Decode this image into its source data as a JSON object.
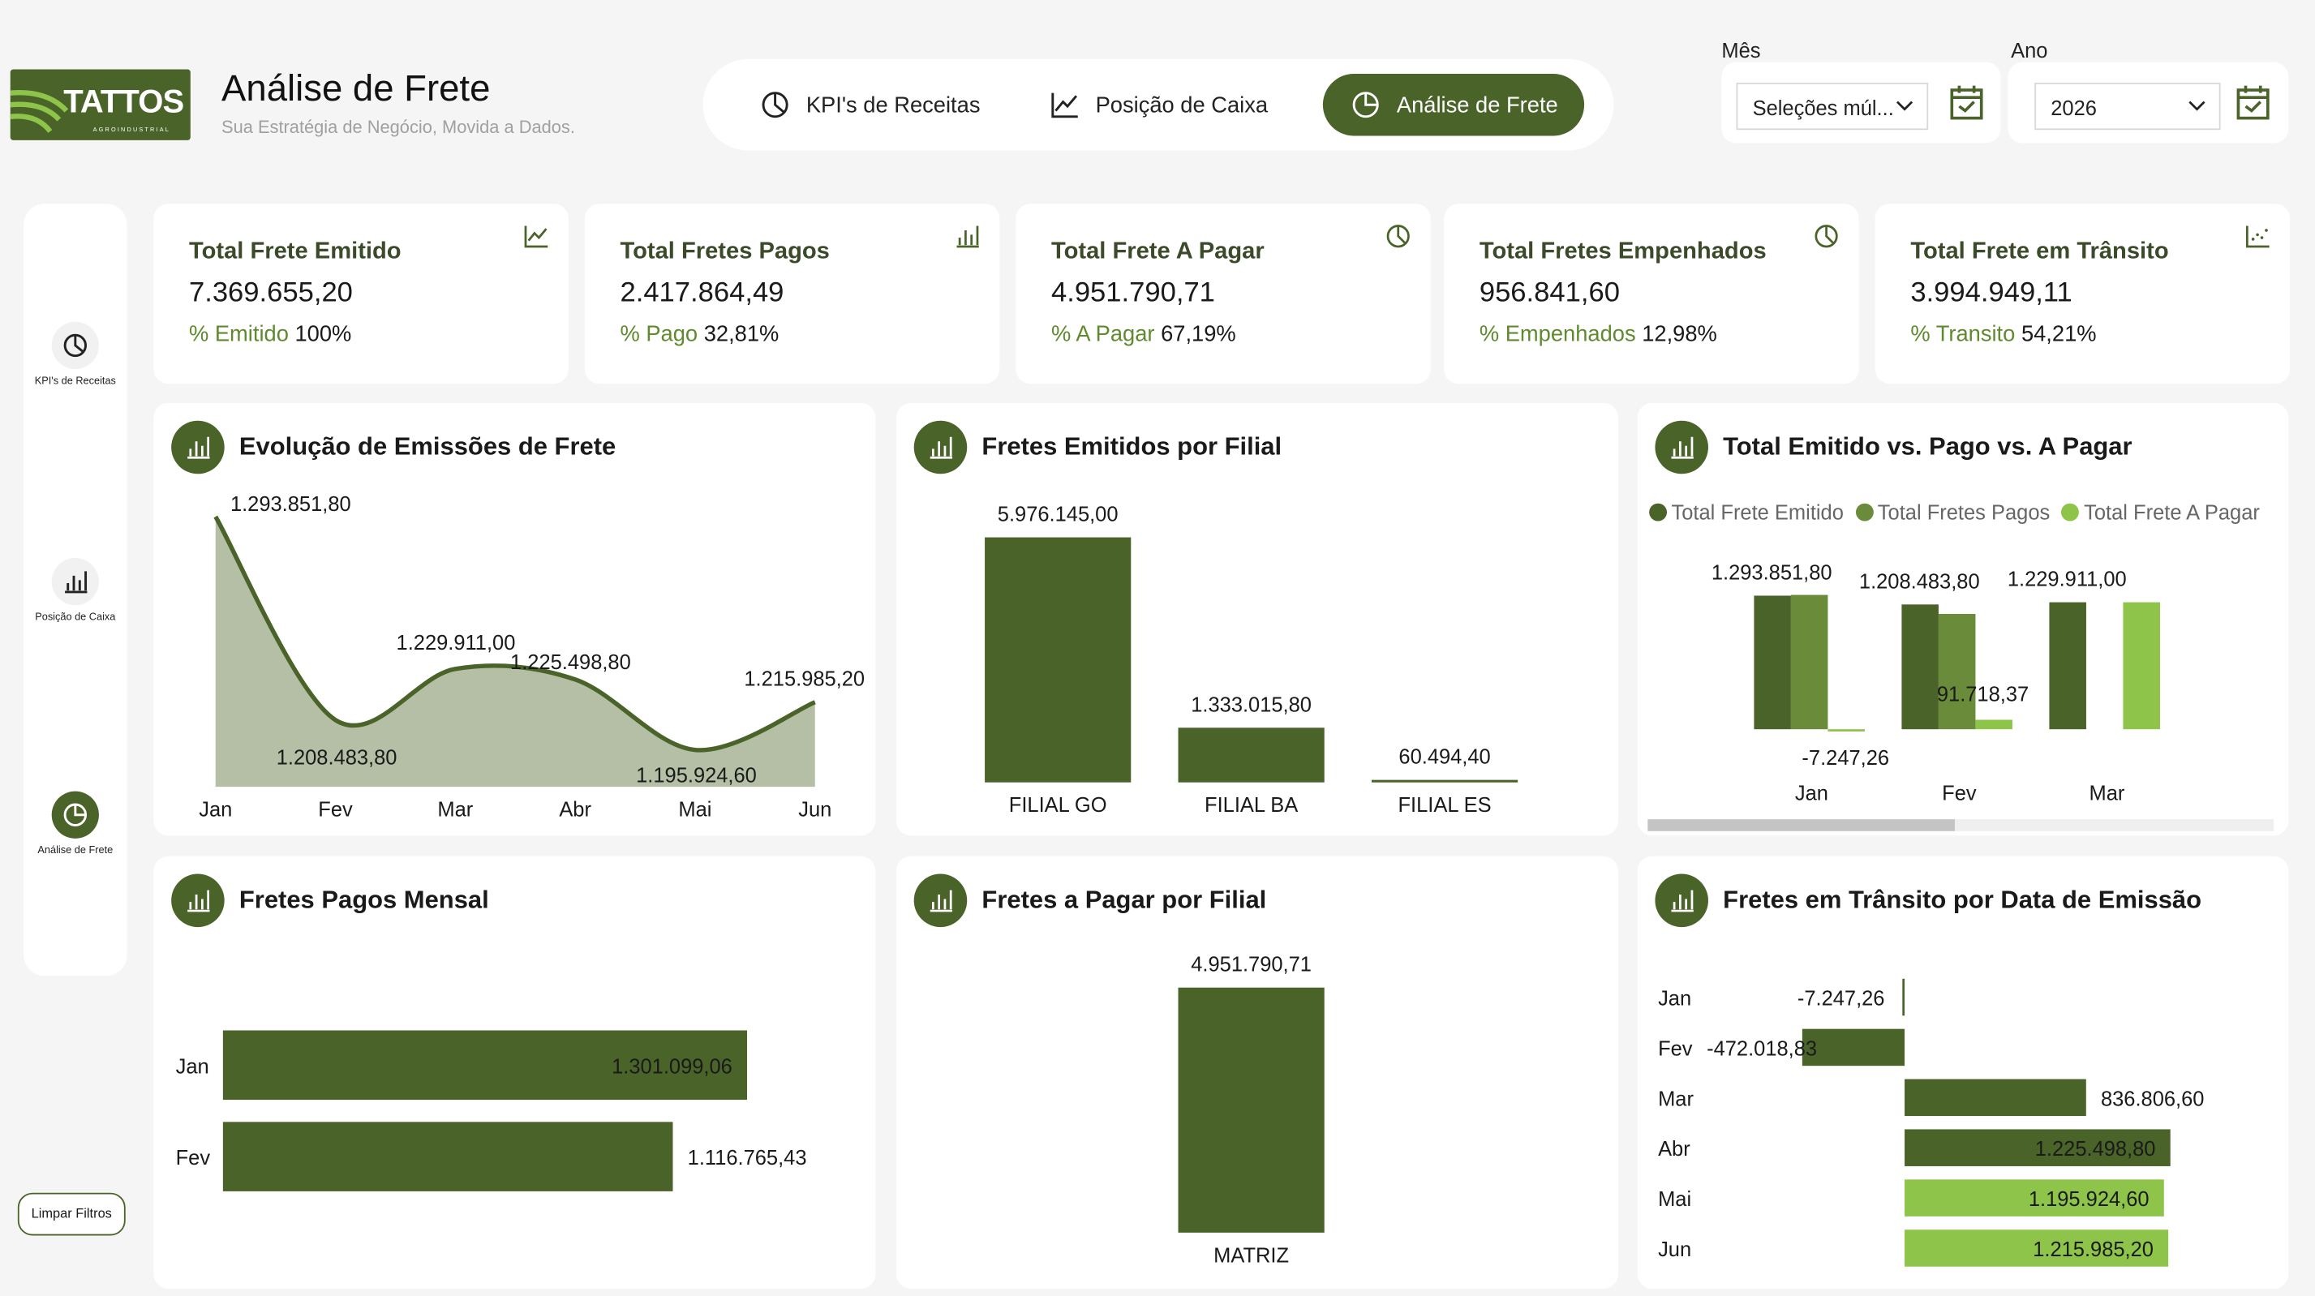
{
  "header": {
    "logo_text": "TATTOS",
    "logo_sub": "AGROINDUSTRIAL",
    "title": "Análise de Frete",
    "subtitle": "Sua Estratégia de Negócio, Movida a Dados."
  },
  "nav": [
    {
      "label": "KPI's de Receitas",
      "icon": "chart-pie-icon"
    },
    {
      "label": "Posição de Caixa",
      "icon": "line-chart-icon"
    },
    {
      "label": "Análise de Frete",
      "icon": "pie-icon",
      "active": true
    }
  ],
  "filters": {
    "mes_label": "Mês",
    "mes_value": "Seleções múl...",
    "ano_label": "Ano",
    "ano_value": "2026"
  },
  "sidebar": [
    {
      "label": "KPI's de Receitas"
    },
    {
      "label": "Posição de Caixa"
    },
    {
      "label": "Análise de Frete",
      "active": true
    }
  ],
  "clear_filters": "Limpar Filtros",
  "colors": {
    "dark": "#4a6329",
    "mid": "#6a8c3a",
    "light": "#8dc449",
    "area": "#b4bfa5"
  },
  "kpis": [
    {
      "title": "Total Frete Emitido",
      "value": "7.369.655,20",
      "pct_label": "% Emitido",
      "pct": "100%",
      "icon": "line-chart-icon"
    },
    {
      "title": "Total Fretes Pagos",
      "value": "2.417.864,49",
      "pct_label": "% Pago",
      "pct": "32,81%",
      "icon": "bar-chart-icon"
    },
    {
      "title": "Total Frete A Pagar",
      "value": "4.951.790,71",
      "pct_label": "% A Pagar",
      "pct": "67,19%",
      "icon": "pie-icon"
    },
    {
      "title": "Total Fretes Empenhados",
      "value": "956.841,60",
      "pct_label": "% Empenhados",
      "pct": "12,98%",
      "icon": "pie-icon"
    },
    {
      "title": "Total Frete em Trânsito",
      "value": "3.994.949,11",
      "pct_label": "% Transito",
      "pct": "54,21%",
      "icon": "scatter-icon"
    }
  ],
  "chart_data": [
    {
      "id": "evolucao",
      "type": "area",
      "title": "Evolução de Emissões de Frete",
      "categories": [
        "Jan",
        "Fev",
        "Mar",
        "Abr",
        "Mai",
        "Jun"
      ],
      "values": [
        1293851.8,
        1208483.8,
        1229911.0,
        1225498.8,
        1195924.6,
        1215985.2
      ],
      "labels": [
        "1.293.851,80",
        "1.208.483,80",
        "1.229.911,00",
        "1.225.498,80",
        "1.195.924,60",
        "1.215.985,20"
      ]
    },
    {
      "id": "filial",
      "type": "bar",
      "title": "Fretes Emitidos por Filial",
      "categories": [
        "FILIAL GO",
        "FILIAL BA",
        "FILIAL ES"
      ],
      "values": [
        5976145.0,
        1333015.8,
        60494.4
      ],
      "labels": [
        "5.976.145,00",
        "1.333.015,80",
        "60.494,40"
      ]
    },
    {
      "id": "comparativo",
      "type": "bar",
      "title": "Total Emitido vs. Pago vs. A Pagar",
      "categories": [
        "Jan",
        "Fev",
        "Mar"
      ],
      "series": [
        {
          "name": "Total Frete Emitido",
          "values": [
            1293851.8,
            1208483.8,
            1229911.0
          ],
          "labels": [
            "1.293.851,80",
            "1.208.483,80",
            "1.229.911,00"
          ]
        },
        {
          "name": "Total Fretes Pagos",
          "values": [
            1301099.06,
            1116765.43,
            null
          ],
          "labels": [
            "",
            "",
            ""
          ]
        },
        {
          "name": "Total Frete A Pagar",
          "values": [
            -7247.26,
            91718.37,
            1229911.0
          ],
          "labels": [
            "-7.247,26",
            "91.718,37",
            ""
          ]
        }
      ],
      "legend": "top-left"
    },
    {
      "id": "pagos",
      "type": "hbar",
      "title": "Fretes Pagos Mensal",
      "categories": [
        "Jan",
        "Fev"
      ],
      "values": [
        1301099.06,
        1116765.43
      ],
      "labels": [
        "1.301.099,06",
        "1.116.765,43"
      ]
    },
    {
      "id": "apagar",
      "type": "bar",
      "title": "Fretes a Pagar por Filial",
      "categories": [
        "MATRIZ"
      ],
      "values": [
        4951790.71
      ],
      "labels": [
        "4.951.790,71"
      ]
    },
    {
      "id": "transito",
      "type": "hbar",
      "title": "Fretes em Trânsito por Data de Emissão",
      "categories": [
        "Jan",
        "Fev",
        "Mar",
        "Abr",
        "Mai",
        "Jun"
      ],
      "values": [
        -7247.26,
        -472018.83,
        836806.6,
        1225498.8,
        1195924.6,
        1215985.2
      ],
      "labels": [
        "-7.247,26",
        "-472.018,83",
        "836.806,60",
        "1.225.498,80",
        "1.195.924,60",
        "1.215.985,20"
      ]
    }
  ]
}
